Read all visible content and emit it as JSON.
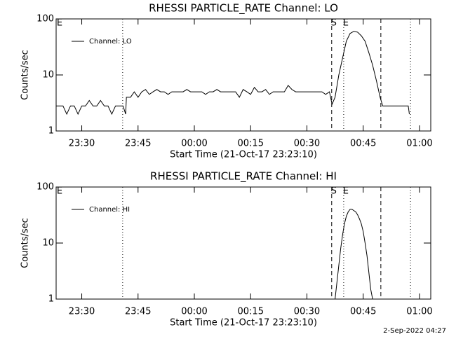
{
  "chart_data": [
    {
      "type": "line",
      "title": "RHESSI PARTICLE_RATE Channel: LO",
      "x_label": "Start Time (21-Oct-17 23:23:10)",
      "y_label": "Counts/sec",
      "log_y": true,
      "legend": "top-left",
      "xlim": [
        1403.17,
        1503
      ],
      "xticks": [
        {
          "value": 1410,
          "label": "23:30"
        },
        {
          "value": 1425,
          "label": "23:45"
        },
        {
          "value": 1440,
          "label": "00:00"
        },
        {
          "value": 1455,
          "label": "00:15"
        },
        {
          "value": 1470,
          "label": "00:30"
        },
        {
          "value": 1485,
          "label": "00:45"
        },
        {
          "value": 1500,
          "label": "01:00"
        }
      ],
      "ylim": [
        1,
        100
      ],
      "yticks": [
        1,
        10,
        100
      ],
      "markers": [
        {
          "x": 1420.9,
          "style": "dotted"
        },
        {
          "x": 1476.6,
          "style": "dashed"
        },
        {
          "x": 1479.8,
          "style": "dotted"
        },
        {
          "x": 1489.7,
          "style": "dashed"
        },
        {
          "x": 1497.6,
          "style": "dotted"
        }
      ],
      "annotations": [
        {
          "text": "E",
          "x": 1403.17
        },
        {
          "text": "S",
          "x": 1476.6
        },
        {
          "text": "E",
          "x": 1479.8
        }
      ],
      "x": [
        1403.17,
        1404,
        1405,
        1406,
        1407,
        1408,
        1409,
        1410,
        1411,
        1412,
        1413,
        1414,
        1415,
        1416,
        1417,
        1418,
        1419,
        1420,
        1421,
        1421.7,
        1421.9,
        1423,
        1424,
        1425,
        1426,
        1427,
        1428,
        1429,
        1430,
        1431,
        1432,
        1433,
        1434,
        1435,
        1436,
        1437,
        1438,
        1439,
        1440,
        1441,
        1442,
        1443,
        1444,
        1445,
        1446,
        1447,
        1448,
        1449,
        1450,
        1451,
        1452,
        1453,
        1454,
        1455,
        1456,
        1457,
        1458,
        1459,
        1460,
        1461,
        1462,
        1463,
        1464,
        1465,
        1466,
        1467,
        1468,
        1469,
        1470,
        1471,
        1472,
        1473,
        1474,
        1475,
        1476,
        1476.7,
        1477.5,
        1478.5,
        1479.5,
        1480.5,
        1481.5,
        1482.5,
        1483.5,
        1484.5,
        1485.5,
        1486.5,
        1487.5,
        1488.5,
        1489.5,
        1490.2,
        1496,
        1497,
        1497.3
      ],
      "series": [
        {
          "name": "Channel: LO",
          "color": "#000000",
          "values": [
            2.8,
            2.8,
            2.8,
            2,
            2.8,
            2.8,
            2,
            2.8,
            2.8,
            3.5,
            2.8,
            2.8,
            3.5,
            2.8,
            2.8,
            2,
            2.8,
            2.8,
            2.8,
            2,
            4,
            4,
            5,
            4,
            5,
            5.5,
            4.5,
            5,
            5.5,
            5,
            5,
            4.5,
            5,
            5,
            5,
            5,
            5.5,
            5,
            5,
            5,
            5,
            4.5,
            5,
            5,
            5.5,
            5,
            5,
            5,
            5,
            5,
            4,
            5.5,
            5,
            4.5,
            6,
            5,
            5,
            5.5,
            4.5,
            5,
            5,
            5,
            5,
            6.5,
            5.5,
            5,
            5,
            5,
            5,
            5,
            5,
            5,
            5,
            4.5,
            5,
            3,
            4,
            10,
            20,
            40,
            55,
            60,
            58,
            50,
            40,
            25,
            15,
            8,
            4,
            2.8,
            2.8,
            2.8,
            2
          ]
        }
      ]
    },
    {
      "type": "line",
      "title": "RHESSI PARTICLE_RATE Channel: HI",
      "x_label": "Start Time (21-Oct-17 23:23:10)",
      "y_label": "Counts/sec",
      "log_y": true,
      "legend": "top-left",
      "xlim": [
        1403.17,
        1503
      ],
      "xticks": [
        {
          "value": 1410,
          "label": "23:30"
        },
        {
          "value": 1425,
          "label": "23:45"
        },
        {
          "value": 1440,
          "label": "00:00"
        },
        {
          "value": 1455,
          "label": "00:15"
        },
        {
          "value": 1470,
          "label": "00:30"
        },
        {
          "value": 1485,
          "label": "00:45"
        },
        {
          "value": 1500,
          "label": "01:00"
        }
      ],
      "ylim": [
        1,
        100
      ],
      "yticks": [
        1,
        10,
        100
      ],
      "markers": [
        {
          "x": 1420.9,
          "style": "dotted"
        },
        {
          "x": 1476.6,
          "style": "dashed"
        },
        {
          "x": 1479.8,
          "style": "dotted"
        },
        {
          "x": 1489.7,
          "style": "dashed"
        },
        {
          "x": 1497.6,
          "style": "dotted"
        }
      ],
      "annotations": [
        {
          "text": "E",
          "x": 1403.17
        },
        {
          "text": "S",
          "x": 1476.6
        },
        {
          "text": "E",
          "x": 1479.8
        }
      ],
      "x": [
        1477.5,
        1478,
        1478.5,
        1479,
        1479.5,
        1480,
        1480.5,
        1481,
        1481.5,
        1482,
        1482.5,
        1483,
        1483.5,
        1484,
        1484.5,
        1485,
        1485.5,
        1486,
        1486.5,
        1487,
        1487.5
      ],
      "series": [
        {
          "name": "Channel: HI",
          "color": "#000000",
          "values": [
            1,
            2,
            4,
            8,
            14,
            22,
            30,
            36,
            40,
            40,
            38,
            36,
            32,
            27,
            22,
            16,
            10,
            6,
            3,
            1.5,
            1
          ]
        }
      ]
    }
  ],
  "footer": "2-Sep-2022 04:27"
}
